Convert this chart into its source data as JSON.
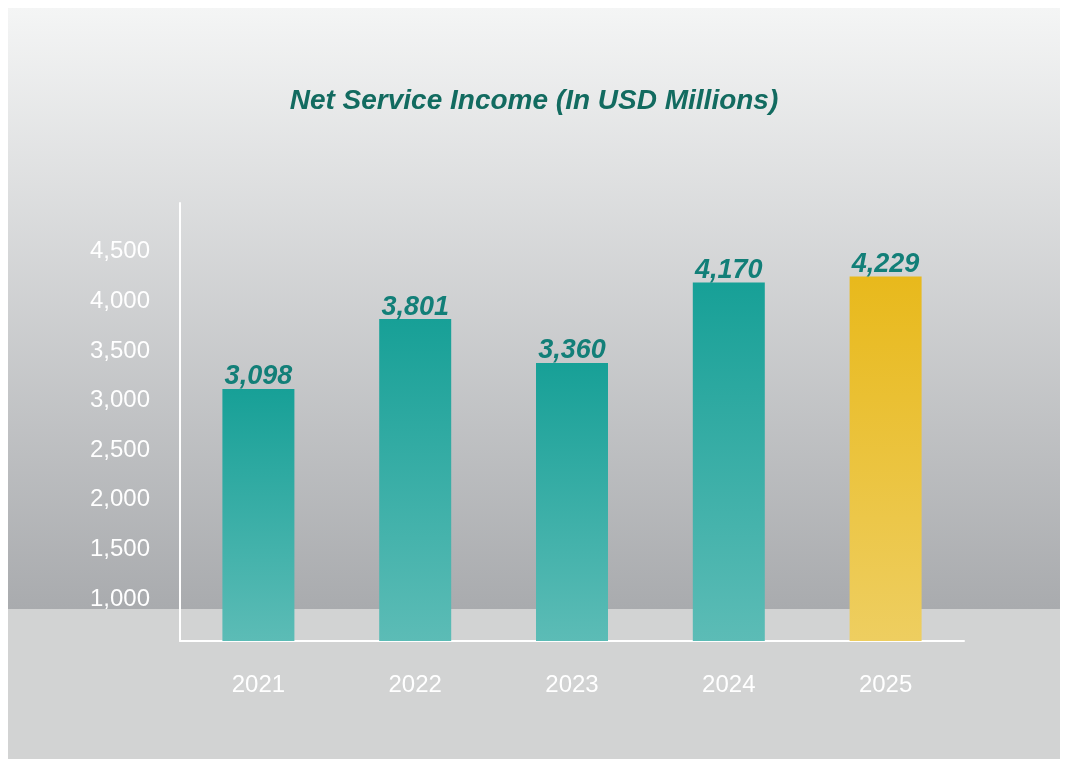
{
  "chart_data": {
    "type": "bar",
    "title": "Net Service Income (In USD Millions)",
    "categories": [
      "2021",
      "2022",
      "2023",
      "2024",
      "2025"
    ],
    "values": [
      3098,
      3801,
      3360,
      4170,
      4229
    ],
    "colors": [
      "#17a097",
      "#17a097",
      "#17a097",
      "#17a097",
      "#e8b91c"
    ],
    "value_labels": [
      "3,098",
      "3,801",
      "3,360",
      "4,170",
      "4,229"
    ],
    "ylim": [
      560,
      4970
    ],
    "yticks": [
      {
        "value": 1000,
        "label": "1,000"
      },
      {
        "value": 1500,
        "label": "1,500"
      },
      {
        "value": 2000,
        "label": "2,000"
      },
      {
        "value": 2500,
        "label": "2,500"
      },
      {
        "value": 3000,
        "label": "3,000"
      },
      {
        "value": 3500,
        "label": "3,500"
      },
      {
        "value": 4000,
        "label": "4,000"
      },
      {
        "value": 4500,
        "label": "4,500"
      }
    ],
    "grid": false
  }
}
